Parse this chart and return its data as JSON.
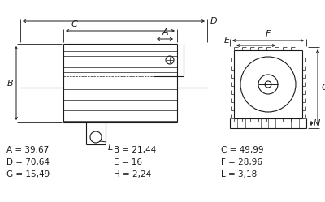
{
  "background_color": "#ffffff",
  "dimensions_table": [
    [
      [
        "A",
        "39,67"
      ],
      [
        "B",
        "21,44"
      ],
      [
        "C",
        "49,99"
      ]
    ],
    [
      [
        "D",
        "70,64"
      ],
      [
        "E",
        "16"
      ],
      [
        "F",
        "28,96"
      ]
    ],
    [
      [
        "G",
        "15,49"
      ],
      [
        "H",
        "2,24"
      ],
      [
        "L",
        "3,18"
      ]
    ]
  ],
  "text_color": "#1a1a1a",
  "line_color": "#1a1a1a",
  "dim_fontsize": 7.5,
  "label_fontsize": 8.0
}
